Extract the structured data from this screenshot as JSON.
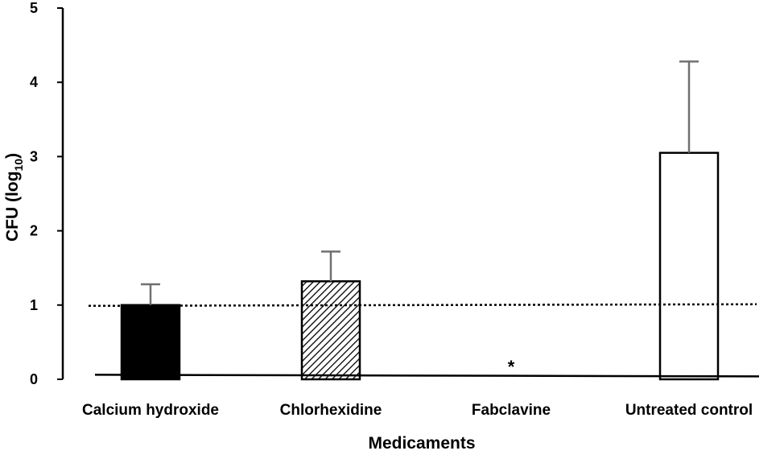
{
  "chart_data": {
    "type": "bar",
    "categories": [
      "Calcium hydroxide",
      "Chlorhexidine",
      "Fabclavine",
      "Untreated control"
    ],
    "values": [
      1.0,
      1.32,
      0,
      3.05
    ],
    "error_plus": [
      0.28,
      0.4,
      0,
      1.23
    ],
    "fills": [
      "solid-black",
      "diagonal-hatch",
      "none",
      "white"
    ],
    "annotations": [
      {
        "category": "Fabclavine",
        "text": "*"
      }
    ],
    "reference_line": {
      "y": 1.0,
      "style": "dotted"
    },
    "baseline": {
      "y": 0.05,
      "style": "solid"
    },
    "xlabel": "Medicaments",
    "ylabel_main": "CFU (log",
    "ylabel_sub": "10",
    "ylabel_close": ")",
    "ylim": [
      0,
      5
    ],
    "yticks": [
      "0",
      "1",
      "2",
      "3",
      "4",
      "5"
    ],
    "grid": false,
    "legend": "none"
  },
  "colors": {
    "bar_stroke": "#000000",
    "error_bar": "#707070",
    "solid_fill": "#000000",
    "open_fill": "#ffffff"
  }
}
